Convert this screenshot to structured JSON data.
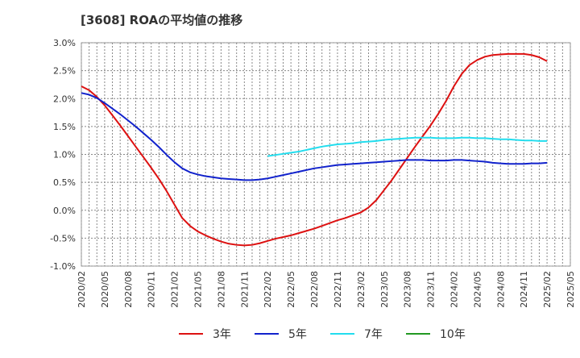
{
  "chart_data": {
    "type": "line",
    "title": "[3608]  ROAの平均値の推移",
    "xlabel": "",
    "ylabel": "",
    "ylim": [
      -1.0,
      3.0
    ],
    "yticks": [
      -1.0,
      -0.5,
      0.0,
      0.5,
      1.0,
      1.5,
      2.0,
      2.5,
      3.0
    ],
    "ytick_labels": [
      "-1.0%",
      "-0.5%",
      "0.0%",
      "0.5%",
      "1.0%",
      "1.5%",
      "2.0%",
      "2.5%",
      "3.0%"
    ],
    "xlim": [
      "2020/02",
      "2025/05"
    ],
    "xtick_labels": [
      "2020/02",
      "2020/05",
      "2020/08",
      "2020/11",
      "2021/02",
      "2021/05",
      "2021/08",
      "2021/11",
      "2022/02",
      "2022/05",
      "2022/08",
      "2022/11",
      "2023/02",
      "2023/05",
      "2023/08",
      "2023/11",
      "2024/02",
      "2024/05",
      "2024/08",
      "2024/11",
      "2025/02",
      "2025/05"
    ],
    "grid": true,
    "legend_position": "bottom",
    "series": [
      {
        "name": "3年",
        "color": "#dd1111",
        "x": [
          "2020/02",
          "2020/03",
          "2020/04",
          "2020/05",
          "2020/06",
          "2020/07",
          "2020/08",
          "2020/09",
          "2020/10",
          "2020/11",
          "2020/12",
          "2021/01",
          "2021/02",
          "2021/03",
          "2021/04",
          "2021/05",
          "2021/06",
          "2021/07",
          "2021/08",
          "2021/09",
          "2021/10",
          "2021/11",
          "2021/12",
          "2022/01",
          "2022/02",
          "2022/03",
          "2022/04",
          "2022/05",
          "2022/06",
          "2022/07",
          "2022/08",
          "2022/09",
          "2022/10",
          "2022/11",
          "2022/12",
          "2023/01",
          "2023/02",
          "2023/03",
          "2023/04",
          "2023/05",
          "2023/06",
          "2023/07",
          "2023/08",
          "2023/09",
          "2023/10",
          "2023/11",
          "2023/12",
          "2024/01",
          "2024/02",
          "2024/03",
          "2024/04",
          "2024/05",
          "2024/06",
          "2024/07",
          "2024/08",
          "2024/09",
          "2024/10",
          "2024/11",
          "2024/12",
          "2025/01",
          "2025/02"
        ],
        "values": [
          2.22,
          2.15,
          2.03,
          1.88,
          1.7,
          1.52,
          1.33,
          1.14,
          0.95,
          0.76,
          0.56,
          0.34,
          0.1,
          -0.14,
          -0.28,
          -0.38,
          -0.45,
          -0.51,
          -0.56,
          -0.6,
          -0.62,
          -0.63,
          -0.62,
          -0.59,
          -0.55,
          -0.51,
          -0.48,
          -0.45,
          -0.41,
          -0.37,
          -0.33,
          -0.28,
          -0.23,
          -0.18,
          -0.14,
          -0.09,
          -0.04,
          0.05,
          0.18,
          0.36,
          0.54,
          0.74,
          0.94,
          1.14,
          1.33,
          1.52,
          1.73,
          1.96,
          2.22,
          2.44,
          2.6,
          2.69,
          2.75,
          2.78,
          2.79,
          2.8,
          2.8,
          2.8,
          2.78,
          2.74,
          2.67
        ]
      },
      {
        "name": "5年",
        "color": "#1122cc",
        "x": [
          "2020/02",
          "2020/03",
          "2020/04",
          "2020/05",
          "2020/06",
          "2020/07",
          "2020/08",
          "2020/09",
          "2020/10",
          "2020/11",
          "2020/12",
          "2021/01",
          "2021/02",
          "2021/03",
          "2021/04",
          "2021/05",
          "2021/06",
          "2021/07",
          "2021/08",
          "2021/09",
          "2021/10",
          "2021/11",
          "2021/12",
          "2022/01",
          "2022/02",
          "2022/03",
          "2022/04",
          "2022/05",
          "2022/06",
          "2022/07",
          "2022/08",
          "2022/09",
          "2022/10",
          "2022/11",
          "2022/12",
          "2023/01",
          "2023/02",
          "2023/03",
          "2023/04",
          "2023/05",
          "2023/06",
          "2023/07",
          "2023/08",
          "2023/09",
          "2023/10",
          "2023/11",
          "2023/12",
          "2024/01",
          "2024/02",
          "2024/03",
          "2024/04",
          "2024/05",
          "2024/06",
          "2024/07",
          "2024/08",
          "2024/09",
          "2024/10",
          "2024/11",
          "2024/12",
          "2025/01",
          "2025/02"
        ],
        "values": [
          2.1,
          2.07,
          2.01,
          1.92,
          1.82,
          1.72,
          1.61,
          1.5,
          1.38,
          1.26,
          1.13,
          0.99,
          0.86,
          0.75,
          0.68,
          0.64,
          0.61,
          0.59,
          0.57,
          0.56,
          0.55,
          0.54,
          0.54,
          0.55,
          0.57,
          0.6,
          0.63,
          0.66,
          0.69,
          0.72,
          0.75,
          0.77,
          0.79,
          0.81,
          0.82,
          0.83,
          0.84,
          0.85,
          0.86,
          0.87,
          0.88,
          0.89,
          0.9,
          0.9,
          0.9,
          0.89,
          0.89,
          0.89,
          0.9,
          0.9,
          0.89,
          0.88,
          0.87,
          0.85,
          0.84,
          0.83,
          0.83,
          0.83,
          0.84,
          0.84,
          0.85
        ]
      },
      {
        "name": "7年",
        "color": "#22ddee",
        "x": [
          "2022/02",
          "2022/03",
          "2022/04",
          "2022/05",
          "2022/06",
          "2022/07",
          "2022/08",
          "2022/09",
          "2022/10",
          "2022/11",
          "2022/12",
          "2023/01",
          "2023/02",
          "2023/03",
          "2023/04",
          "2023/05",
          "2023/06",
          "2023/07",
          "2023/08",
          "2023/09",
          "2023/10",
          "2023/11",
          "2023/12",
          "2024/01",
          "2024/02",
          "2024/03",
          "2024/04",
          "2024/05",
          "2024/06",
          "2024/07",
          "2024/08",
          "2024/09",
          "2024/10",
          "2024/11",
          "2024/12",
          "2025/01",
          "2025/02"
        ],
        "values": [
          0.97,
          0.99,
          1.01,
          1.03,
          1.05,
          1.08,
          1.11,
          1.14,
          1.16,
          1.18,
          1.19,
          1.2,
          1.22,
          1.23,
          1.24,
          1.26,
          1.27,
          1.28,
          1.29,
          1.3,
          1.3,
          1.3,
          1.29,
          1.29,
          1.29,
          1.3,
          1.3,
          1.29,
          1.29,
          1.28,
          1.27,
          1.27,
          1.26,
          1.25,
          1.25,
          1.24,
          1.24
        ]
      },
      {
        "name": "10年",
        "color": "#229922",
        "x": [],
        "values": []
      }
    ]
  }
}
